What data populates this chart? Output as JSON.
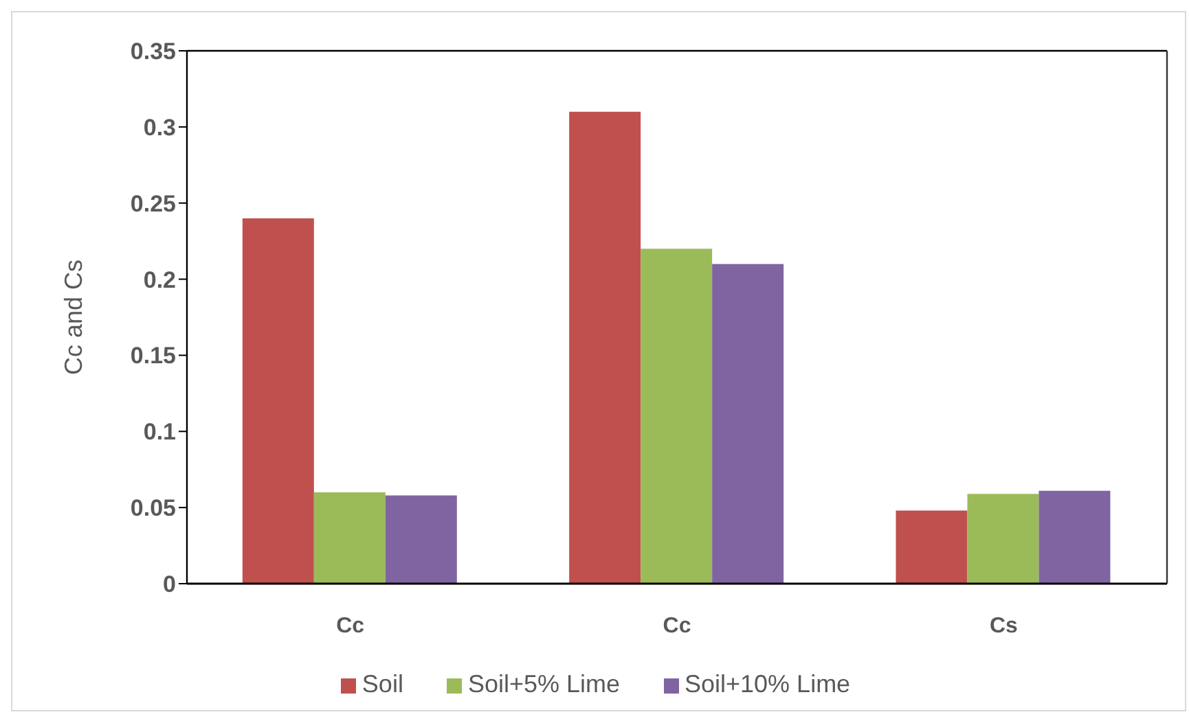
{
  "chart_data": {
    "type": "bar",
    "categories": [
      "Cc",
      "Cc",
      "Cs"
    ],
    "ylabel": "Cc and Cs",
    "series": [
      {
        "name": "Soil",
        "color": "#c0504d",
        "values": [
          0.24,
          0.31,
          0.048
        ]
      },
      {
        "name": "Soil+5% Lime",
        "color": "#9bbb59",
        "values": [
          0.06,
          0.22,
          0.059
        ]
      },
      {
        "name": "Soil+10% Lime",
        "color": "#8064a2",
        "values": [
          0.058,
          0.21,
          0.061
        ]
      }
    ],
    "ylim": [
      0,
      0.35
    ],
    "yticks": [
      0,
      0.05,
      0.1,
      0.15,
      0.2,
      0.25,
      0.3,
      0.35
    ],
    "grid": false,
    "legend": "bottom"
  }
}
